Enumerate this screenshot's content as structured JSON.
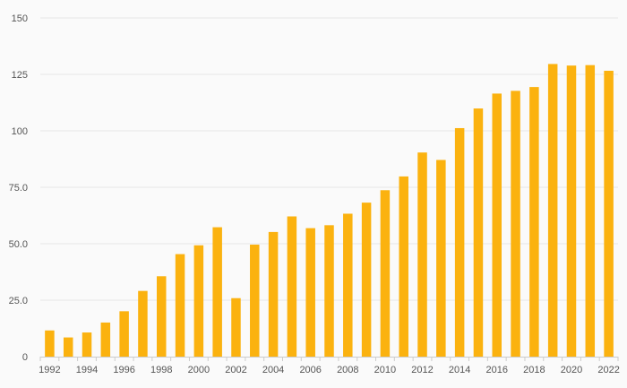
{
  "chart_data": {
    "type": "bar",
    "color": "#fbb20f",
    "background": "#fafafa",
    "grid": true,
    "title": "",
    "xlabel": "",
    "ylabel": "",
    "ylim": [
      0,
      150
    ],
    "y_ticks": [
      0,
      25,
      50,
      75,
      100,
      125,
      150
    ],
    "y_tick_labels": [
      "0",
      "25.0",
      "50.0",
      "75.0",
      "100",
      "125",
      "150"
    ],
    "x_tick_labels": [
      "1992",
      "1994",
      "1996",
      "1998",
      "2000",
      "2002",
      "2004",
      "2006",
      "2008",
      "2010",
      "2012",
      "2014",
      "2016",
      "2018",
      "2020",
      "2022"
    ],
    "categories": [
      "1992",
      "1993",
      "1994",
      "1995",
      "1996",
      "1997",
      "1998",
      "1999",
      "2000",
      "2001",
      "2002",
      "2003",
      "2004",
      "2005",
      "2006",
      "2007",
      "2008",
      "2009",
      "2010",
      "2011",
      "2012",
      "2013",
      "2014",
      "2015",
      "2016",
      "2017",
      "2018",
      "2019",
      "2020",
      "2021",
      "2022"
    ],
    "values": [
      11.6,
      8.5,
      10.7,
      15.1,
      20.1,
      29.1,
      35.6,
      45.4,
      49.3,
      57.3,
      25.9,
      49.6,
      55.2,
      62.1,
      56.9,
      58.2,
      63.3,
      68.2,
      73.7,
      79.8,
      90.4,
      87.1,
      101.2,
      109.9,
      116.5,
      117.7,
      119.4,
      129.6,
      128.9,
      129.1,
      126.6
    ]
  }
}
